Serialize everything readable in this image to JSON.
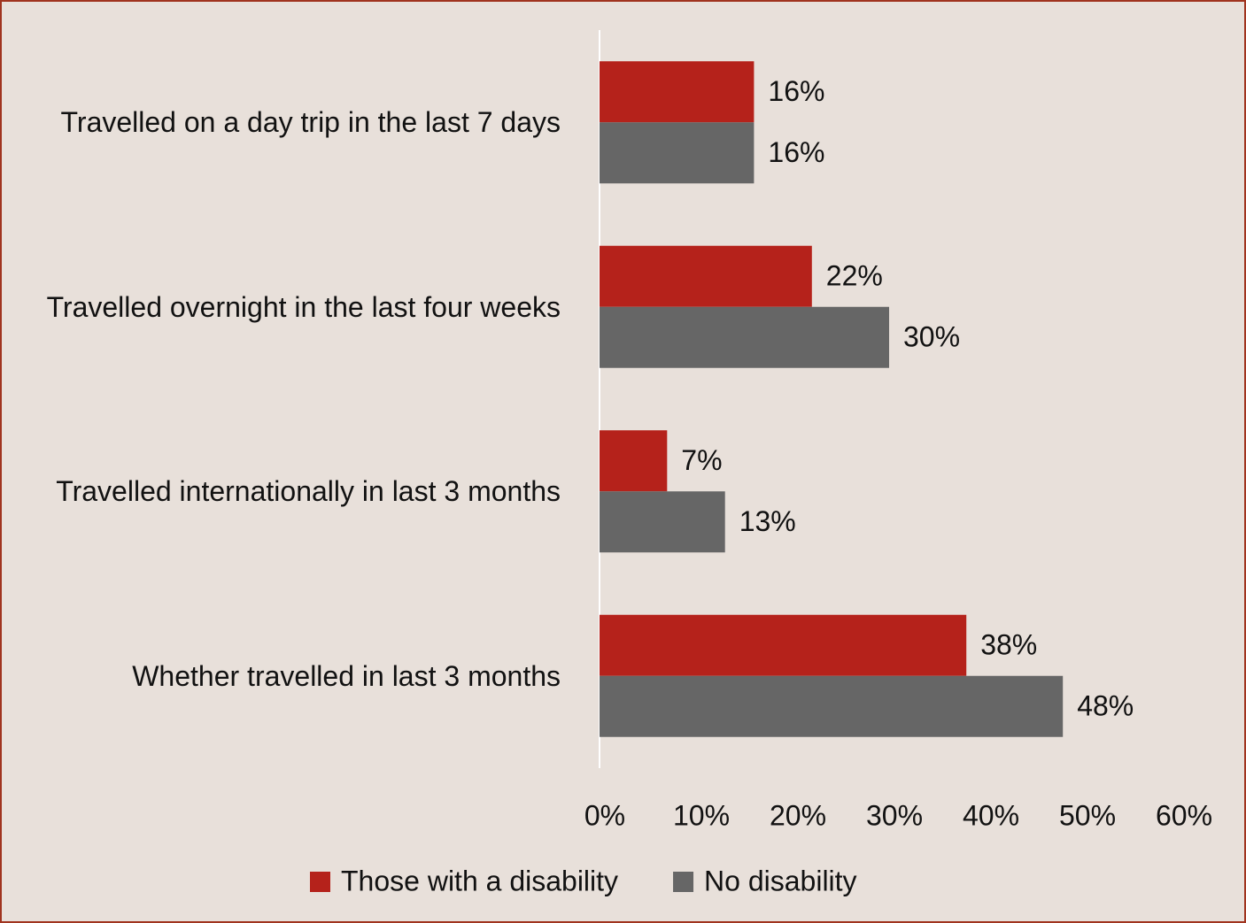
{
  "chart_data": {
    "type": "hbar",
    "categories": [
      "Travelled on a day trip in the last 7 days",
      "Travelled overnight in the last four weeks",
      "Travelled internationally in last 3 months",
      "Whether travelled in last 3 months"
    ],
    "series": [
      {
        "name": "Those with a disability",
        "color": "#b5221b",
        "values": [
          16,
          22,
          7,
          38
        ],
        "value_labels": [
          "16%",
          "22%",
          "7%",
          "38%"
        ]
      },
      {
        "name": "No disability",
        "color": "#666666",
        "values": [
          16,
          30,
          13,
          48
        ],
        "value_labels": [
          "16%",
          "30%",
          "13%",
          "48%"
        ]
      }
    ],
    "xlim": [
      0,
      60
    ],
    "xticks": [
      {
        "value": 0,
        "label": "0%"
      },
      {
        "value": 10,
        "label": "10%"
      },
      {
        "value": 20,
        "label": "20%"
      },
      {
        "value": 30,
        "label": "30%"
      },
      {
        "value": 40,
        "label": "40%"
      },
      {
        "value": 50,
        "label": "50%"
      },
      {
        "value": 60,
        "label": "60%"
      }
    ],
    "legend": "bottom"
  }
}
